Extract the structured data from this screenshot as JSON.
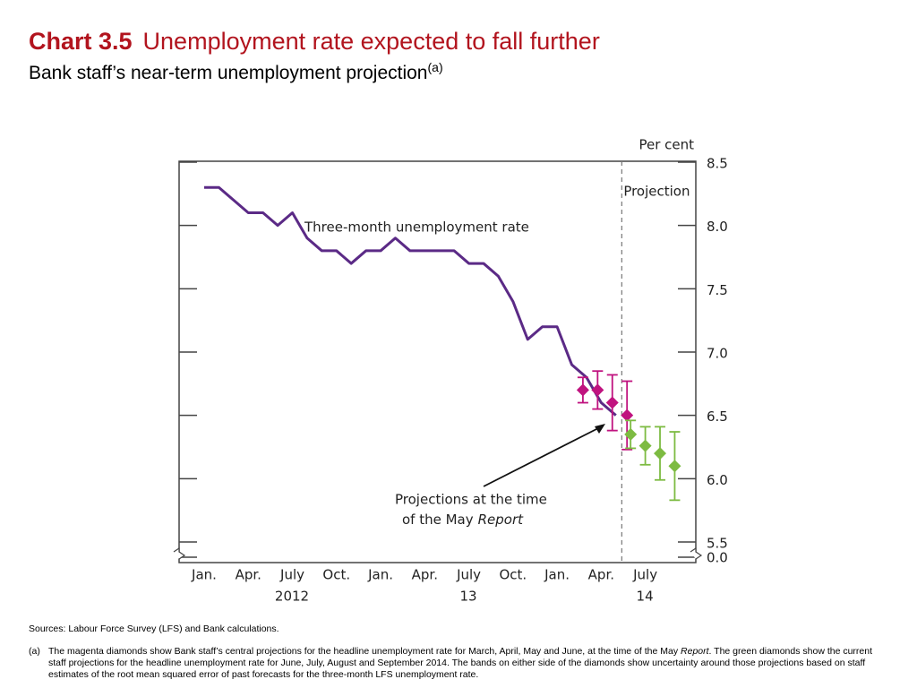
{
  "chart_data": {
    "type": "line",
    "title_label": "Chart 3.5",
    "title": "Unemployment rate expected to fall further",
    "subtitle": "Bank staff’s near-term unemployment projection",
    "subtitle_note": "(a)",
    "y_unit": "Per cent",
    "categories": [
      "Jan.",
      null,
      null,
      "Apr.",
      null,
      null,
      "July",
      null,
      null,
      "Oct.",
      null,
      null,
      "Jan.",
      null,
      null,
      "Apr.",
      null,
      null,
      "July",
      null,
      null,
      "Oct.",
      null,
      null,
      "Jan.",
      null,
      null,
      "Apr.",
      null,
      null,
      "July",
      null,
      null
    ],
    "x_groups": [
      {
        "label": "2012",
        "start": 0,
        "end": 11
      },
      {
        "label": "13",
        "start": 12,
        "end": 23
      },
      {
        "label": "14",
        "start": 24,
        "end": 32
      }
    ],
    "series": [
      {
        "name": "Three-month unemployment rate",
        "kind": "line",
        "color": "#5b2a86",
        "values": [
          8.3,
          8.3,
          8.2,
          8.1,
          8.1,
          8.0,
          8.1,
          7.9,
          7.8,
          7.8,
          7.7,
          7.8,
          7.8,
          7.9,
          7.8,
          7.8,
          7.8,
          7.8,
          7.7,
          7.7,
          7.6,
          7.4,
          7.1,
          7.2,
          7.2,
          6.9,
          6.8,
          6.6,
          6.5,
          null,
          null,
          null,
          null
        ]
      },
      {
        "kind": "diamond",
        "color": "#c0137f",
        "values": [
          null,
          null,
          null,
          null,
          null,
          null,
          null,
          null,
          null,
          null,
          null,
          null,
          null,
          null,
          null,
          null,
          null,
          null,
          null,
          null,
          null,
          null,
          null,
          null,
          null,
          null,
          6.7,
          6.7,
          6.6,
          6.5,
          null,
          null,
          null
        ],
        "errors": [
          null,
          null,
          null,
          null,
          null,
          null,
          null,
          null,
          null,
          null,
          null,
          null,
          null,
          null,
          null,
          null,
          null,
          null,
          null,
          null,
          null,
          null,
          null,
          null,
          null,
          null,
          0.1,
          0.15,
          0.22,
          0.27,
          null,
          null,
          null
        ]
      },
      {
        "kind": "diamond",
        "color": "#7dbb42",
        "values": [
          null,
          null,
          null,
          null,
          null,
          null,
          null,
          null,
          null,
          null,
          null,
          null,
          null,
          null,
          null,
          null,
          null,
          null,
          null,
          null,
          null,
          null,
          null,
          null,
          null,
          null,
          null,
          null,
          null,
          6.35,
          6.26,
          6.2,
          6.1
        ],
        "errors": [
          null,
          null,
          null,
          null,
          null,
          null,
          null,
          null,
          null,
          null,
          null,
          null,
          null,
          null,
          null,
          null,
          null,
          null,
          null,
          null,
          null,
          null,
          null,
          null,
          null,
          null,
          null,
          null,
          null,
          0.11,
          0.15,
          0.21,
          0.27
        ]
      }
    ],
    "ylim": [
      5.5,
      8.5
    ],
    "yticks": [
      {
        "value": 5.5,
        "label": "5.5"
      },
      {
        "value": 6,
        "label": "6.0"
      },
      {
        "value": 6.5,
        "label": "6.5"
      },
      {
        "value": 7,
        "label": "7.0"
      },
      {
        "value": 7.5,
        "label": "7.5"
      },
      {
        "value": 8,
        "label": "8.0"
      },
      {
        "value": 8.5,
        "label": "8.5"
      }
    ],
    "axis_break": {
      "value": 0,
      "label": "0.0"
    },
    "projection": {
      "label": "Projection",
      "x": 28.4
    },
    "annotations": {
      "projections_line1": "Projections at the time",
      "projections_line2": "of the May",
      "projections_italic": "Report"
    },
    "grid": false
  },
  "footer": {
    "sources": "Sources:  Labour Force Survey (LFS) and Bank calculations.",
    "note_marker": "(a)",
    "note_part1": "The magenta diamonds show Bank staff’s central projections for the headline unemployment rate for March, April, May and June, at the time of the May",
    "note_italic": "Report",
    "note_part2": ".  The green diamonds show the current staff projections for the headline unemployment rate for June, July, August and September 2014.  The bands on either side of the diamonds show uncertainty around those projections based on staff estimates of the root mean squared error of past forecasts for the three-month LFS unemployment rate."
  }
}
